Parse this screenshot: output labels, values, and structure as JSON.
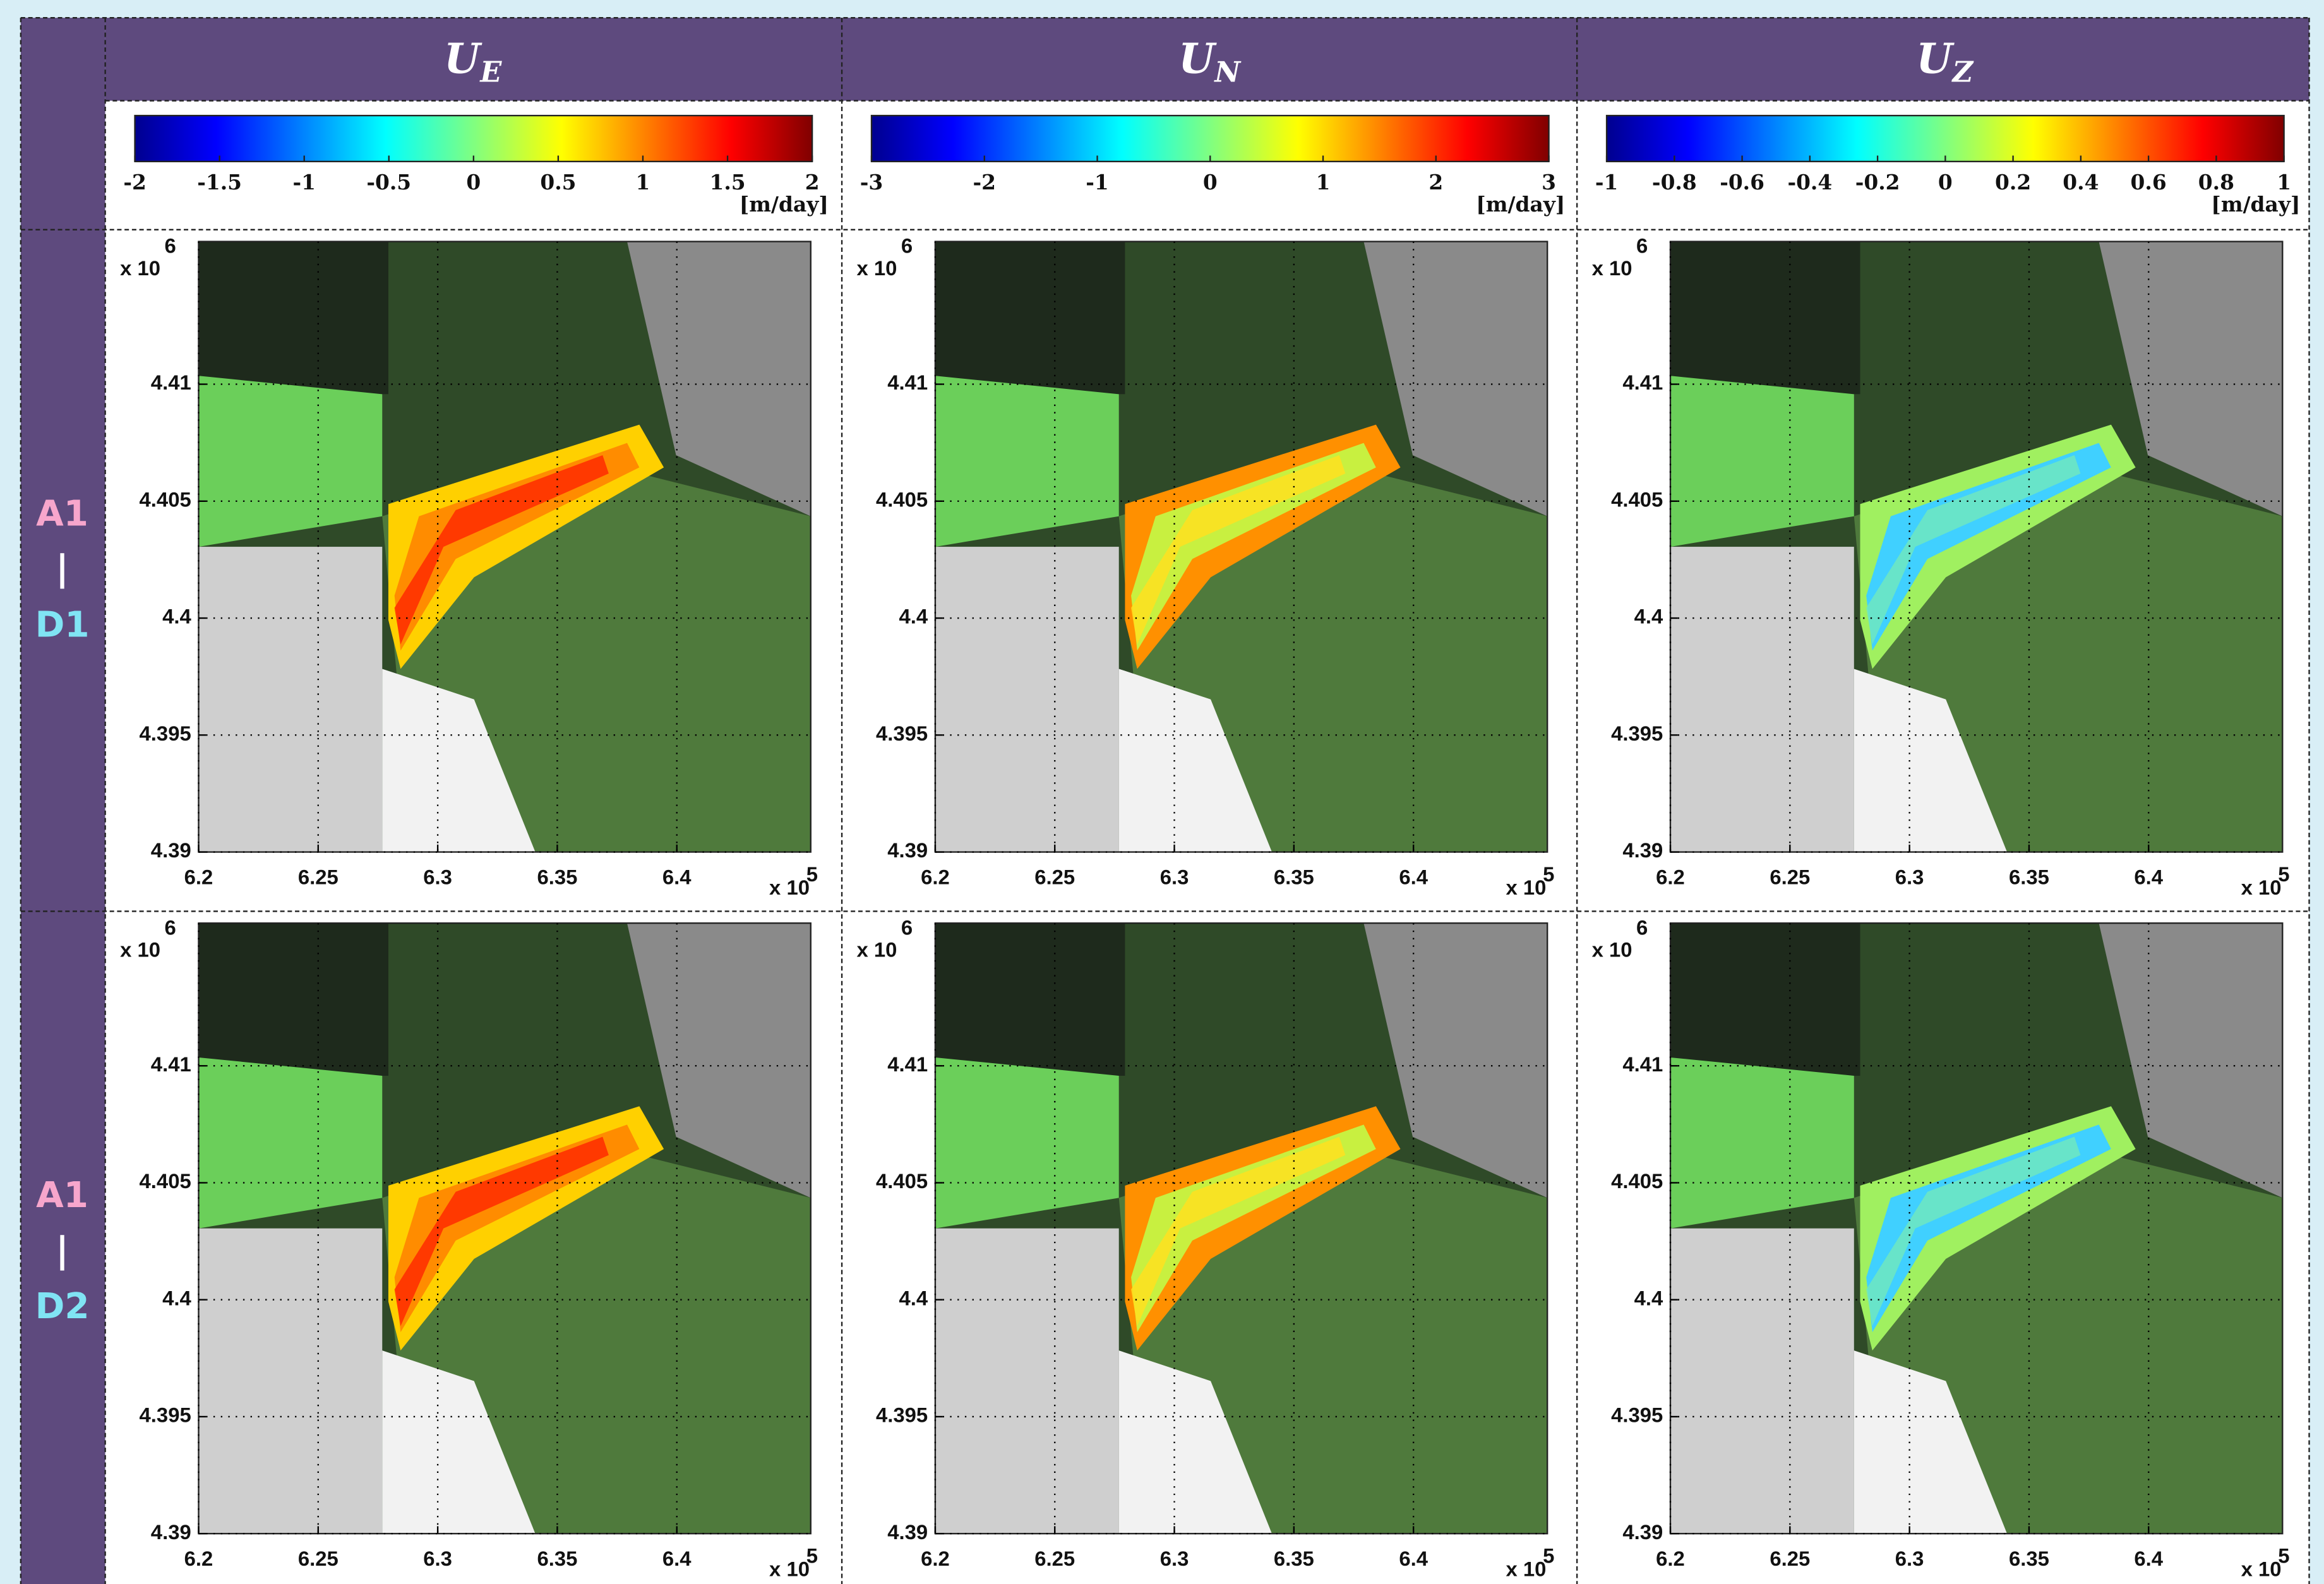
{
  "columns": [
    {
      "title": {
        "symbol": "U",
        "subscript": "E"
      },
      "colorbar": {
        "lim": [
          -2,
          2
        ],
        "ticks": [
          -2,
          -1.5,
          -1,
          -0.5,
          0,
          0.5,
          1,
          1.5,
          2
        ],
        "unit": "[m/day]"
      }
    },
    {
      "title": {
        "symbol": "U",
        "subscript": "N"
      },
      "colorbar": {
        "lim": [
          -3,
          3
        ],
        "ticks": [
          -3,
          -2,
          -1,
          0,
          1,
          2,
          3
        ],
        "unit": "[m/day]"
      }
    },
    {
      "title": {
        "symbol": "U",
        "subscript": "Z"
      },
      "colorbar": {
        "lim": [
          -1,
          1
        ],
        "ticks": [
          -1,
          -0.8,
          -0.6,
          -0.4,
          -0.2,
          0,
          0.2,
          0.4,
          0.6,
          0.8,
          1
        ],
        "unit": "[m/day]"
      }
    }
  ],
  "rows": [
    {
      "label_top": "A1",
      "separator": "|",
      "label_bottom": "D1"
    },
    {
      "label_top": "A1",
      "separator": "|",
      "label_bottom": "D2"
    }
  ],
  "axes": {
    "xlim": [
      6.2,
      6.456
    ],
    "xticks": [
      6.2,
      6.25,
      6.3,
      6.35,
      6.4
    ],
    "x_multiplier": "x 10",
    "x_exponent": "5",
    "ylim": [
      4.39,
      4.4161
    ],
    "yticks": [
      4.39,
      4.395,
      4.4,
      4.405,
      4.41
    ],
    "y_multiplier": "x 10",
    "y_exponent": "6"
  }
}
